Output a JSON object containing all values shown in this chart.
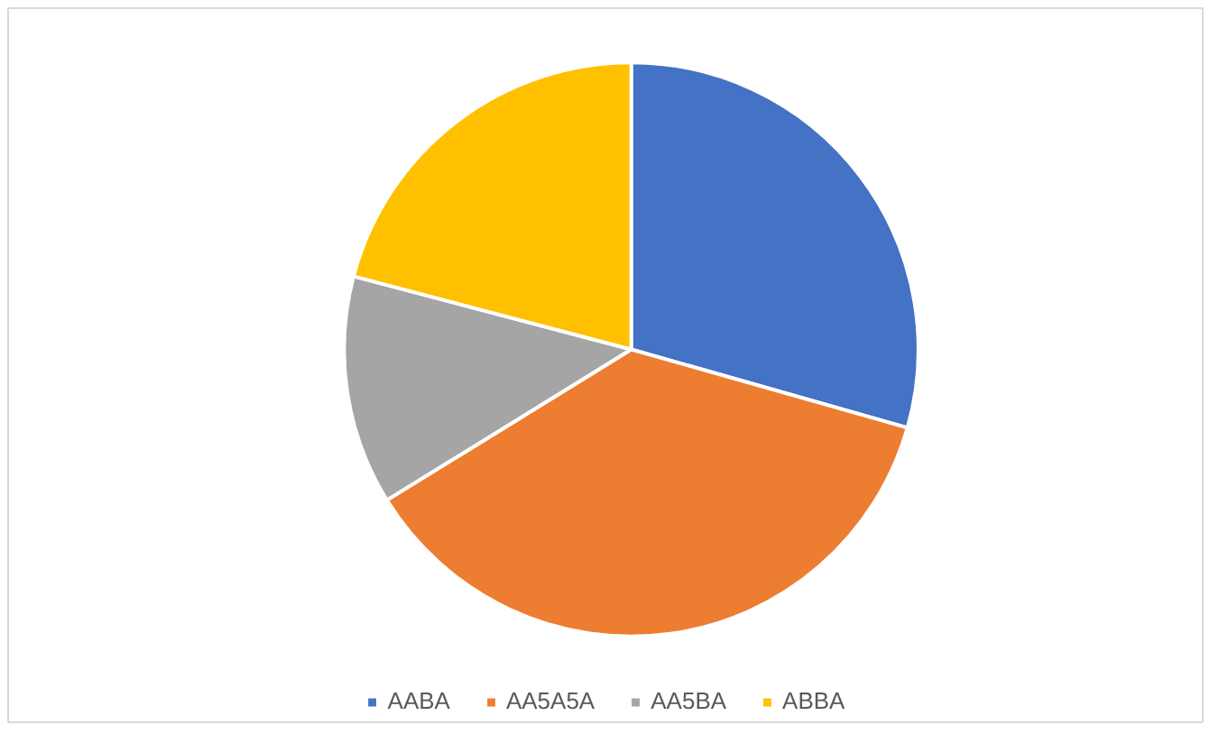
{
  "chart_data": {
    "type": "pie",
    "categories": [
      "AABA",
      "AA5A5A",
      "AA5BA",
      "ABBA"
    ],
    "values": [
      29.4,
      36.8,
      12.9,
      20.9
    ],
    "colors": [
      "#4472c4",
      "#ed7d31",
      "#a5a5a5",
      "#ffc000"
    ],
    "legend": "bottom"
  }
}
